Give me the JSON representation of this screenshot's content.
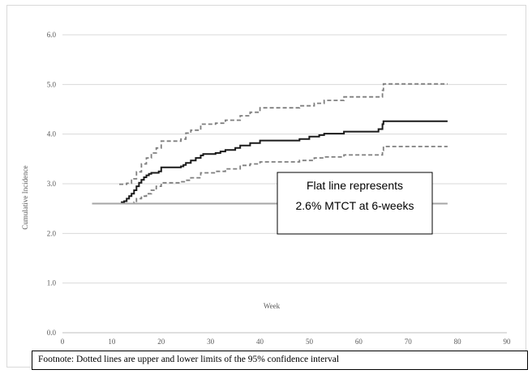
{
  "chart_data": {
    "type": "line",
    "xlabel": "Week",
    "ylabel": "Cumulative Incidence",
    "xlim": [
      0,
      90
    ],
    "ylim": [
      0,
      6
    ],
    "x_ticks": [
      "0",
      "10",
      "20",
      "30",
      "40",
      "50",
      "60",
      "70",
      "80",
      "90"
    ],
    "y_ticks": [
      "0.0",
      "1.0",
      "2.0",
      "3.0",
      "4.0",
      "5.0",
      "6.0"
    ],
    "grid": "horizontal",
    "series": [
      {
        "role": "estimate",
        "style": "solid",
        "color": "#1a1a1a",
        "points": [
          [
            6,
            2.6
          ],
          [
            11.5,
            2.6
          ],
          [
            12,
            2.63
          ],
          [
            12.5,
            2.65
          ],
          [
            13,
            2.7
          ],
          [
            13.5,
            2.75
          ],
          [
            14,
            2.8
          ],
          [
            14.5,
            2.87
          ],
          [
            15,
            2.95
          ],
          [
            15.5,
            3.02
          ],
          [
            16,
            3.08
          ],
          [
            16.5,
            3.13
          ],
          [
            17,
            3.17
          ],
          [
            17.5,
            3.2
          ],
          [
            18,
            3.22
          ],
          [
            19.5,
            3.25
          ],
          [
            20,
            3.33
          ],
          [
            24,
            3.35
          ],
          [
            24.5,
            3.38
          ],
          [
            25,
            3.42
          ],
          [
            26,
            3.47
          ],
          [
            27,
            3.52
          ],
          [
            28,
            3.57
          ],
          [
            28.5,
            3.6
          ],
          [
            31,
            3.62
          ],
          [
            32,
            3.65
          ],
          [
            33,
            3.68
          ],
          [
            35,
            3.72
          ],
          [
            36,
            3.77
          ],
          [
            38,
            3.82
          ],
          [
            40,
            3.87
          ],
          [
            48,
            3.9
          ],
          [
            50,
            3.95
          ],
          [
            52,
            3.98
          ],
          [
            53,
            4.01
          ],
          [
            57,
            4.05
          ],
          [
            64,
            4.1
          ],
          [
            64.8,
            4.2
          ],
          [
            65,
            4.26
          ],
          [
            78,
            4.26
          ]
        ]
      },
      {
        "role": "upper 95% limit",
        "style": "dashed",
        "color": "#7f7f7f",
        "points": [
          [
            11.5,
            2.99
          ],
          [
            13,
            3.01
          ],
          [
            14,
            3.1
          ],
          [
            15,
            3.24
          ],
          [
            16,
            3.4
          ],
          [
            17,
            3.52
          ],
          [
            18,
            3.62
          ],
          [
            19,
            3.72
          ],
          [
            20,
            3.86
          ],
          [
            24,
            3.9
          ],
          [
            25,
            4.02
          ],
          [
            26,
            4.08
          ],
          [
            28,
            4.2
          ],
          [
            31,
            4.22
          ],
          [
            33,
            4.28
          ],
          [
            36,
            4.37
          ],
          [
            38,
            4.44
          ],
          [
            40,
            4.53
          ],
          [
            48,
            4.57
          ],
          [
            51,
            4.62
          ],
          [
            53,
            4.68
          ],
          [
            57,
            4.75
          ],
          [
            64.8,
            4.88
          ],
          [
            65,
            5.01
          ],
          [
            78,
            5.01
          ]
        ]
      },
      {
        "role": "lower 95% limit",
        "style": "dashed",
        "color": "#7f7f7f",
        "points": [
          [
            14,
            2.6
          ],
          [
            14.5,
            2.63
          ],
          [
            15,
            2.7
          ],
          [
            16,
            2.75
          ],
          [
            17,
            2.8
          ],
          [
            18,
            2.87
          ],
          [
            19,
            2.95
          ],
          [
            20,
            3.02
          ],
          [
            24,
            3.04
          ],
          [
            25,
            3.07
          ],
          [
            26,
            3.12
          ],
          [
            28,
            3.22
          ],
          [
            31,
            3.25
          ],
          [
            33,
            3.3
          ],
          [
            36,
            3.37
          ],
          [
            38,
            3.4
          ],
          [
            40,
            3.44
          ],
          [
            48,
            3.47
          ],
          [
            51,
            3.52
          ],
          [
            53,
            3.54
          ],
          [
            57,
            3.58
          ],
          [
            64.8,
            3.67
          ],
          [
            65,
            3.75
          ],
          [
            78,
            3.75
          ]
        ]
      },
      {
        "role": "reference",
        "style": "solid",
        "color": "#a6a6a6",
        "points": [
          [
            6,
            2.6
          ],
          [
            78,
            2.6
          ]
        ]
      }
    ],
    "annotation": {
      "lines": [
        "Flat line represents",
        "2.6% MTCT at 6-weeks"
      ]
    }
  },
  "footnote": "Footnote: Dotted lines are upper and lower limits of the 95% confidence interval"
}
